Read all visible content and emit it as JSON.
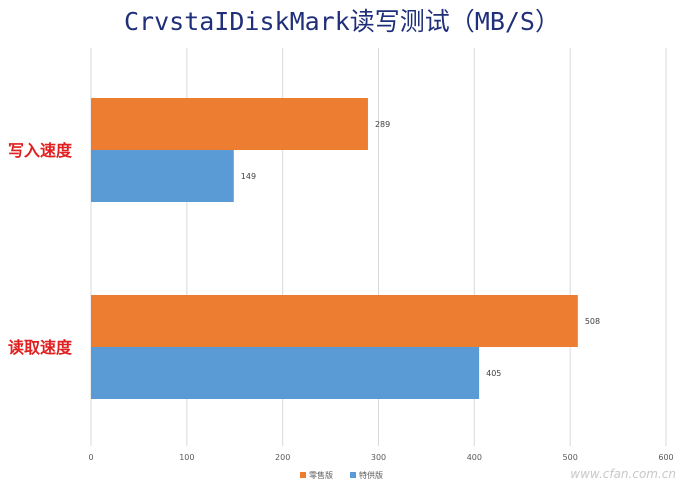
{
  "chart_data": {
    "type": "bar",
    "orientation": "horizontal",
    "title": "CrvstaIDiskMark读写测试（MB/S）",
    "categories": [
      "写入速度",
      "读取速度"
    ],
    "series": [
      {
        "name": "零售版",
        "color": "#ed7d31",
        "values": [
          289,
          508
        ]
      },
      {
        "name": "特供版",
        "color": "#5b9bd5",
        "values": [
          149,
          405
        ]
      }
    ],
    "xlim": [
      0,
      600
    ],
    "x_ticks": [
      0,
      100,
      200,
      300,
      400,
      500,
      600
    ],
    "grid": true,
    "legend": "bottom",
    "category_label_color": "#e02020"
  },
  "watermark": {
    "text": "www.cfan.com.cn"
  }
}
